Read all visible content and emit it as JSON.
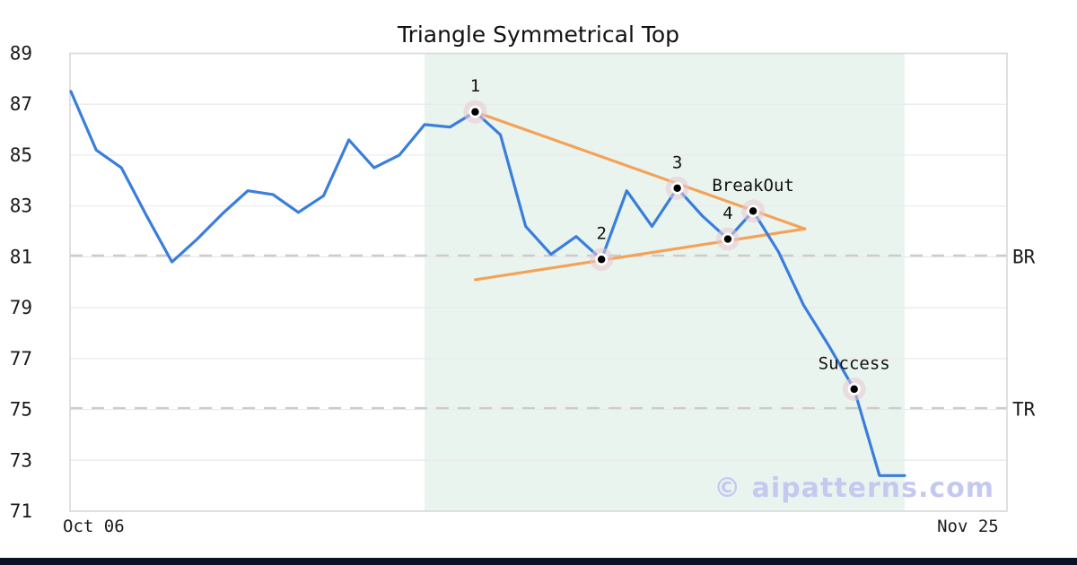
{
  "watermark": "© aipatterns.com",
  "colors": {
    "price_line": "#3a7edb",
    "trendline": "#f4a258",
    "pattern_region": "#eaf4ef",
    "marker_halo": "#e8c9d2",
    "grid": "#e9e9e9",
    "level_dash": "#cccccc",
    "border": "#d8d8d8",
    "text": "#1a1a1a",
    "watermark_color": "#c5c9f0",
    "bottom_bar": "#0c1226"
  },
  "chart_data": {
    "type": "line",
    "title": "Triangle Symmetrical Top",
    "ylim": [
      71,
      89
    ],
    "y_ticks": [
      89,
      87,
      85,
      83,
      81,
      79,
      77,
      75,
      73,
      71
    ],
    "x_ticks": [
      {
        "label": "Oct 06",
        "i": 0.9
      },
      {
        "label": "Nov 25",
        "i": 35.5
      }
    ],
    "grid": true,
    "series": {
      "name": "price",
      "values": [
        87.5,
        85.2,
        84.5,
        82.6,
        80.8,
        81.7,
        82.7,
        83.6,
        83.45,
        82.75,
        83.4,
        85.6,
        84.5,
        85.0,
        86.2,
        86.1,
        86.7,
        85.8,
        82.2,
        81.1,
        81.8,
        80.9,
        83.6,
        82.2,
        83.7,
        82.6,
        81.7,
        82.8,
        81.2,
        79.1,
        77.5,
        75.8,
        72.4,
        72.4
      ]
    },
    "pattern_points": [
      {
        "label": "1",
        "i": 16,
        "value": 86.7
      },
      {
        "label": "2",
        "i": 21,
        "value": 80.9
      },
      {
        "label": "3",
        "i": 24,
        "value": 83.7
      },
      {
        "label": "4",
        "i": 26,
        "value": 81.7
      },
      {
        "label": "BreakOut",
        "i": 27,
        "value": 82.8
      },
      {
        "label": "Success",
        "i": 31,
        "value": 75.8
      }
    ],
    "trendlines": [
      {
        "name": "upper",
        "i1": 16,
        "v1": 86.7,
        "i2": 29.05,
        "v2": 82.1
      },
      {
        "name": "lower",
        "i1": 16,
        "v1": 80.1,
        "i2": 29.05,
        "v2": 82.1
      }
    ],
    "pattern_region": {
      "from_i": 14,
      "to_i": 33
    },
    "levels": [
      {
        "label": "BR",
        "value": 81
      },
      {
        "label": "TR",
        "value": 75
      }
    ]
  }
}
